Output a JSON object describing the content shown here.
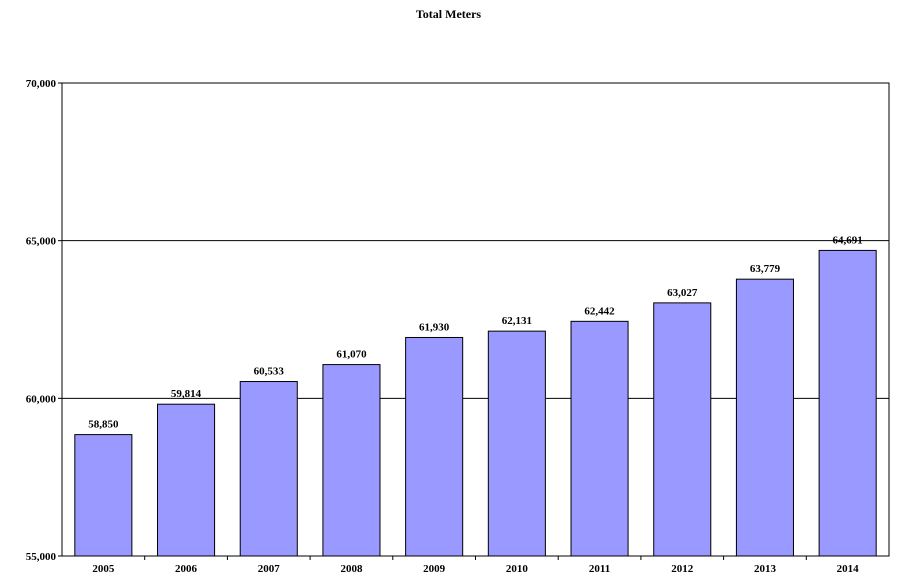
{
  "chart_data": {
    "type": "bar",
    "title": "Total Meters",
    "xlabel": "",
    "ylabel": "",
    "categories": [
      "2005",
      "2006",
      "2007",
      "2008",
      "2009",
      "2010",
      "2011",
      "2012",
      "2013",
      "2014"
    ],
    "values": [
      58850,
      59814,
      60533,
      61070,
      61930,
      62131,
      62442,
      63027,
      63779,
      64691
    ],
    "value_labels": [
      "58,850",
      "59,814",
      "60,533",
      "61,070",
      "61,930",
      "62,131",
      "62,442",
      "63,027",
      "63,779",
      "64,691"
    ],
    "ylim": [
      55000,
      70000
    ],
    "yticks": [
      55000,
      60000,
      65000,
      70000
    ],
    "ytick_labels": [
      "55,000",
      "60,000",
      "65,000",
      "70,000"
    ],
    "grid": "horizontal",
    "legend": "none",
    "colors": {
      "bar": "#9999ff",
      "bar_edge": "#000000"
    }
  }
}
